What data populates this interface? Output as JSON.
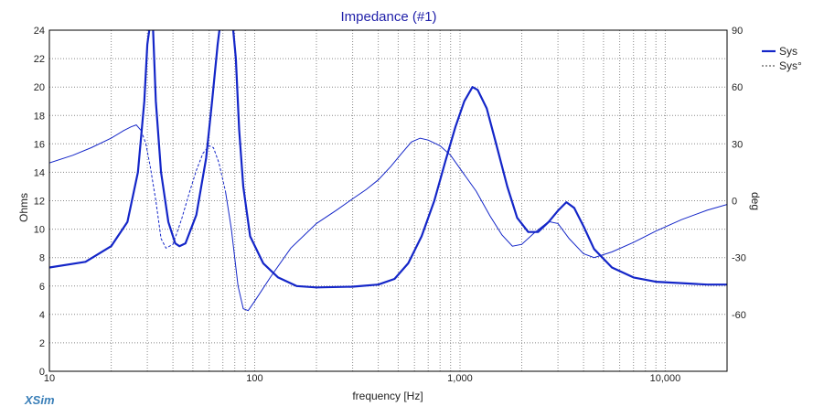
{
  "chart_data": {
    "type": "line",
    "title": "Impedance (#1)",
    "brand": "XSim",
    "xlabel": "frequency [Hz]",
    "ylabel_left": "Ohms",
    "ylabel_right": "deg",
    "x_scale": "log",
    "xlim": [
      10,
      20000
    ],
    "ylim_left": [
      0,
      24
    ],
    "ylim_right": [
      -90,
      90
    ],
    "grid": true,
    "legend_position": "top-right",
    "x_ticks": [
      {
        "value": 10,
        "label": "10"
      },
      {
        "value": 100,
        "label": "100"
      },
      {
        "value": 1000,
        "label": "1,000"
      },
      {
        "value": 10000,
        "label": "10,000"
      }
    ],
    "y_left_ticks": [
      {
        "value": 0,
        "label": "0"
      },
      {
        "value": 2,
        "label": "2"
      },
      {
        "value": 4,
        "label": "4"
      },
      {
        "value": 6,
        "label": "6"
      },
      {
        "value": 8,
        "label": "8"
      },
      {
        "value": 10,
        "label": "10"
      },
      {
        "value": 12,
        "label": "12"
      },
      {
        "value": 14,
        "label": "14"
      },
      {
        "value": 16,
        "label": "16"
      },
      {
        "value": 18,
        "label": "18"
      },
      {
        "value": 20,
        "label": "20"
      },
      {
        "value": 22,
        "label": "22"
      },
      {
        "value": 24,
        "label": "24"
      }
    ],
    "y_right_ticks": [
      {
        "value": -60,
        "label": "-60"
      },
      {
        "value": -30,
        "label": "-30"
      },
      {
        "value": 0,
        "label": "0"
      },
      {
        "value": 30,
        "label": "30"
      },
      {
        "value": 60,
        "label": "60"
      },
      {
        "value": 90,
        "label": "90"
      }
    ],
    "series": [
      {
        "name": "Sys",
        "axis": "left",
        "color": "#1426c8",
        "style": "solid-thick",
        "points": [
          [
            10,
            7.3
          ],
          [
            15,
            7.7
          ],
          [
            20,
            8.8
          ],
          [
            24,
            10.5
          ],
          [
            27,
            14
          ],
          [
            29,
            19
          ],
          [
            30,
            23
          ],
          [
            31,
            24.5
          ],
          [
            32,
            24
          ],
          [
            33,
            19
          ],
          [
            35,
            14
          ],
          [
            38,
            10.5
          ],
          [
            41,
            9.0
          ],
          [
            43,
            8.8
          ],
          [
            46,
            9.0
          ],
          [
            52,
            11
          ],
          [
            58,
            15
          ],
          [
            62,
            19
          ],
          [
            66,
            23
          ],
          [
            68,
            24.5
          ],
          [
            78,
            24.5
          ],
          [
            81,
            22
          ],
          [
            84,
            17
          ],
          [
            88,
            13
          ],
          [
            95,
            9.5
          ],
          [
            110,
            7.6
          ],
          [
            130,
            6.6
          ],
          [
            160,
            6.0
          ],
          [
            200,
            5.9
          ],
          [
            300,
            5.95
          ],
          [
            400,
            6.1
          ],
          [
            480,
            6.5
          ],
          [
            560,
            7.6
          ],
          [
            650,
            9.5
          ],
          [
            750,
            12.0
          ],
          [
            850,
            14.8
          ],
          [
            950,
            17.2
          ],
          [
            1050,
            19.0
          ],
          [
            1150,
            20.0
          ],
          [
            1220,
            19.8
          ],
          [
            1350,
            18.5
          ],
          [
            1500,
            16.0
          ],
          [
            1700,
            13.0
          ],
          [
            1900,
            10.8
          ],
          [
            2150,
            9.8
          ],
          [
            2400,
            9.8
          ],
          [
            2700,
            10.5
          ],
          [
            3000,
            11.3
          ],
          [
            3300,
            11.9
          ],
          [
            3600,
            11.5
          ],
          [
            4000,
            10.2
          ],
          [
            4500,
            8.6
          ],
          [
            5500,
            7.3
          ],
          [
            7000,
            6.6
          ],
          [
            9000,
            6.3
          ],
          [
            12000,
            6.2
          ],
          [
            16000,
            6.1
          ],
          [
            20000,
            6.1
          ]
        ]
      },
      {
        "name": "Sys°",
        "axis": "right",
        "color": "#1426c8",
        "style": "mixed",
        "points": [
          [
            10,
            20
          ],
          [
            13,
            24
          ],
          [
            16,
            28
          ],
          [
            20,
            33
          ],
          [
            23,
            37
          ],
          [
            25,
            39
          ],
          [
            26.5,
            40
          ],
          [
            28,
            37
          ],
          [
            29.5,
            30
          ],
          [
            31,
            18
          ],
          [
            33,
            0
          ],
          [
            35,
            -20
          ],
          [
            37,
            -25
          ],
          [
            40,
            -23
          ],
          [
            44,
            -10
          ],
          [
            48,
            4
          ],
          [
            52,
            16
          ],
          [
            56,
            25
          ],
          [
            60,
            29
          ],
          [
            63,
            28
          ],
          [
            67,
            20
          ],
          [
            72,
            5
          ],
          [
            77,
            -15
          ],
          [
            83,
            -45
          ],
          [
            88,
            -57
          ],
          [
            93,
            -58
          ],
          [
            100,
            -53
          ],
          [
            120,
            -40
          ],
          [
            150,
            -25
          ],
          [
            200,
            -12
          ],
          [
            250,
            -5
          ],
          [
            300,
            1
          ],
          [
            350,
            6
          ],
          [
            400,
            11
          ],
          [
            460,
            18
          ],
          [
            520,
            25
          ],
          [
            580,
            31
          ],
          [
            640,
            33
          ],
          [
            700,
            32
          ],
          [
            800,
            29
          ],
          [
            900,
            24
          ],
          [
            1000,
            17
          ],
          [
            1200,
            5
          ],
          [
            1400,
            -8
          ],
          [
            1600,
            -18
          ],
          [
            1800,
            -24
          ],
          [
            2000,
            -23
          ],
          [
            2300,
            -17
          ],
          [
            2700,
            -11
          ],
          [
            3000,
            -12
          ],
          [
            3400,
            -20
          ],
          [
            4000,
            -28
          ],
          [
            4500,
            -30
          ],
          [
            5500,
            -27
          ],
          [
            7000,
            -22
          ],
          [
            9000,
            -16
          ],
          [
            12000,
            -10
          ],
          [
            16000,
            -5
          ],
          [
            20000,
            -2
          ]
        ]
      }
    ]
  }
}
